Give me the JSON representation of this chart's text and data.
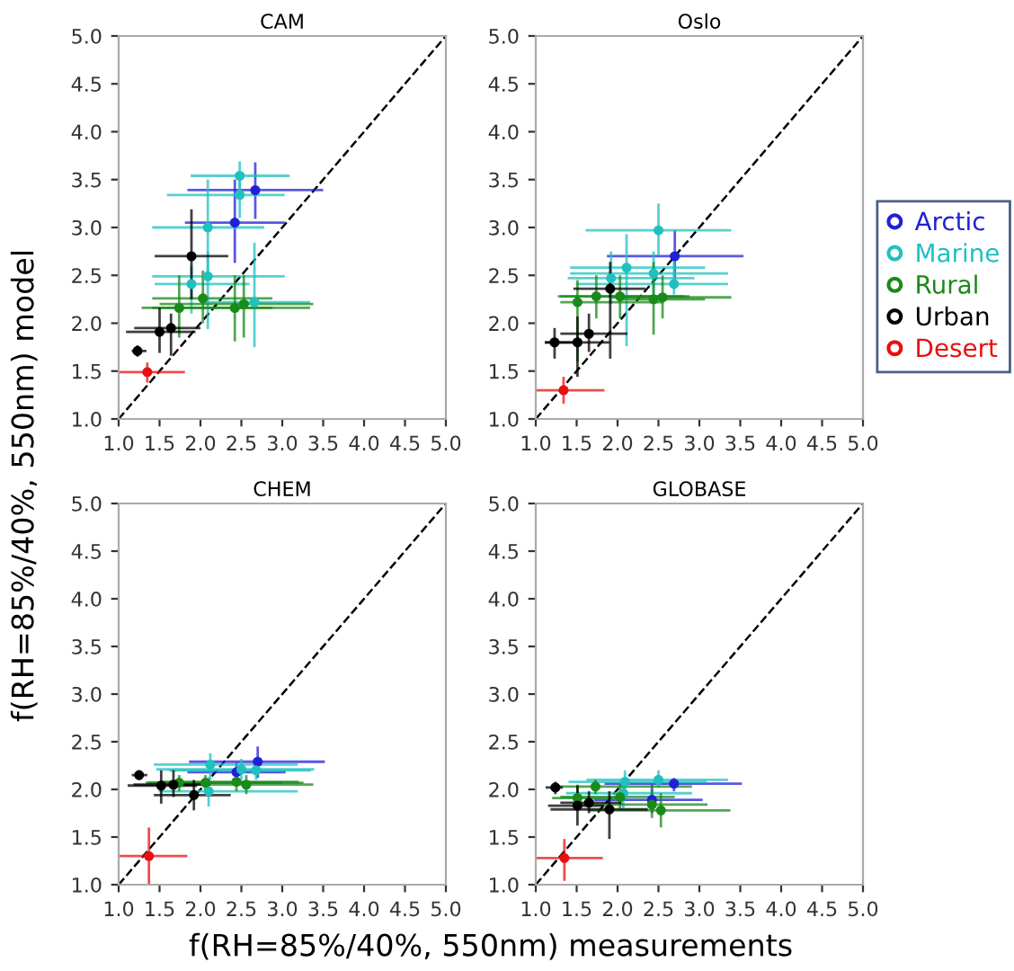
{
  "chart_data": [
    {
      "type": "scatter",
      "title": "CAM",
      "xlabel": "f(RH=85%/40%, 550nm) measurements",
      "ylabel": "f(RH=85%/40%, 550nm) model",
      "legend": "right",
      "marker": "circle",
      "xlim": [
        1,
        5
      ],
      "ylim": [
        1,
        5
      ],
      "xticks": [
        {
          "value": 1,
          "label": "1.0"
        },
        {
          "value": 1.5,
          "label": "1.5"
        },
        {
          "value": 2,
          "label": "2.0"
        },
        {
          "value": 2.5,
          "label": "2.5"
        },
        {
          "value": 3,
          "label": "3.0"
        },
        {
          "value": 3.5,
          "label": "3.5"
        },
        {
          "value": 4,
          "label": "4.0"
        },
        {
          "value": 4.5,
          "label": "4.5"
        },
        {
          "value": 5,
          "label": "5.0"
        }
      ],
      "yticks": [
        {
          "value": 1,
          "label": "1.0"
        },
        {
          "value": 1.5,
          "label": "1.5"
        },
        {
          "value": 2,
          "label": "2.0"
        },
        {
          "value": 2.5,
          "label": "2.5"
        },
        {
          "value": 3,
          "label": "3.0"
        },
        {
          "value": 3.5,
          "label": "3.5"
        },
        {
          "value": 4,
          "label": "4.0"
        },
        {
          "value": 4.5,
          "label": "4.5"
        },
        {
          "value": 5,
          "label": "5.0"
        }
      ],
      "series": [
        {
          "type": "line",
          "marker": "none",
          "color": "#000000",
          "line_style": "dashed",
          "x": [
            1,
            5
          ],
          "values": [
            1,
            5
          ]
        },
        {
          "name": "Arctic",
          "color": "#2020d8",
          "x": [
            2.67,
            2.42
          ],
          "values": [
            3.39,
            3.05
          ],
          "xerrors": [
            [
              1.84,
              3.5
            ],
            [
              1.81,
              3.03
            ]
          ],
          "errors": [
            [
              3.09,
              3.68
            ],
            [
              2.63,
              3.5
            ]
          ]
        },
        {
          "name": "Marine",
          "color": "#20c0c0",
          "x": [
            2.48,
            2.48,
            2.09,
            2.09,
            1.89,
            2.66
          ],
          "values": [
            3.54,
            3.34,
            3.0,
            2.49,
            2.41,
            2.22
          ],
          "xerrors": [
            [
              1.88,
              3.09
            ],
            [
              1.59,
              3.03
            ],
            [
              1.41,
              2.78
            ],
            [
              1.41,
              3.03
            ],
            [
              1.44,
              2.6
            ],
            [
              2.0,
              3.34
            ]
          ],
          "errors": [
            [
              3.38,
              3.69
            ],
            [
              3.1,
              3.5
            ],
            [
              2.5,
              3.5
            ],
            [
              1.94,
              2.75
            ],
            [
              2.1,
              2.6
            ],
            [
              1.75,
              2.84
            ]
          ]
        },
        {
          "name": "Rural",
          "color": "#1a8a1a",
          "x": [
            1.74,
            2.03,
            2.42,
            2.53
          ],
          "values": [
            2.16,
            2.26,
            2.16,
            2.2
          ],
          "xerrors": [
            [
              1.28,
              2.88
            ],
            [
              1.41,
              2.88
            ],
            [
              1.41,
              3.34
            ],
            [
              1.5,
              3.38
            ]
          ],
          "errors": [
            [
              1.85,
              2.5
            ],
            [
              2.0,
              2.55
            ],
            [
              1.81,
              2.5
            ],
            [
              1.85,
              2.5
            ]
          ]
        },
        {
          "name": "Urban",
          "color": "#000000",
          "x": [
            1.23,
            1.5,
            1.64,
            1.89
          ],
          "values": [
            1.71,
            1.91,
            1.95,
            2.7
          ],
          "xerrors": [
            [
              1.16,
              1.34
            ],
            [
              1.09,
              1.94
            ],
            [
              1.19,
              2.0
            ],
            [
              1.44,
              2.34
            ]
          ],
          "errors": [
            [
              1.65,
              1.77
            ],
            [
              1.69,
              2.16
            ],
            [
              1.66,
              2.1
            ],
            [
              2.25,
              3.19
            ]
          ]
        },
        {
          "name": "Desert",
          "color": "#e81010",
          "x": [
            1.35
          ],
          "values": [
            1.49
          ],
          "xerrors": [
            [
              1.0,
              1.81
            ]
          ],
          "errors": [
            [
              1.38,
              1.59
            ]
          ]
        }
      ]
    },
    {
      "type": "scatter",
      "title": "Oslo",
      "marker": "circle",
      "xlim": [
        1,
        5
      ],
      "ylim": [
        1,
        5
      ],
      "xticks": [
        {
          "value": 1,
          "label": "1.0"
        },
        {
          "value": 1.5,
          "label": "1.5"
        },
        {
          "value": 2,
          "label": "2.0"
        },
        {
          "value": 2.5,
          "label": "2.5"
        },
        {
          "value": 3,
          "label": "3.0"
        },
        {
          "value": 3.5,
          "label": "3.5"
        },
        {
          "value": 4,
          "label": "4.0"
        },
        {
          "value": 4.5,
          "label": "4.5"
        },
        {
          "value": 5,
          "label": "5.0"
        }
      ],
      "yticks": [
        {
          "value": 1,
          "label": "1.0"
        },
        {
          "value": 1.5,
          "label": "1.5"
        },
        {
          "value": 2,
          "label": "2.0"
        },
        {
          "value": 2.5,
          "label": "2.5"
        },
        {
          "value": 3,
          "label": "3.0"
        },
        {
          "value": 3.5,
          "label": "3.5"
        },
        {
          "value": 4,
          "label": "4.0"
        },
        {
          "value": 4.5,
          "label": "4.5"
        },
        {
          "value": 5,
          "label": "5.0"
        }
      ],
      "series": [
        {
          "type": "line",
          "marker": "none",
          "color": "#000000",
          "line_style": "dashed",
          "x": [
            1,
            5
          ],
          "values": [
            1,
            5
          ]
        },
        {
          "color": "#2020d8",
          "x": [
            2.7
          ],
          "values": [
            2.7
          ],
          "xerrors": [
            [
              1.87,
              3.54
            ]
          ],
          "errors": [
            [
              2.39,
              2.97
            ]
          ]
        },
        {
          "color": "#20c0c0",
          "x": [
            2.5,
            2.11,
            2.44,
            2.69,
            1.92
          ],
          "values": [
            2.97,
            2.58,
            2.52,
            2.41,
            2.47
          ],
          "xerrors": [
            [
              1.61,
              3.39
            ],
            [
              1.42,
              3.07
            ],
            [
              1.42,
              3.35
            ],
            [
              1.49,
              3.35
            ],
            [
              1.39,
              2.94
            ]
          ],
          "errors": [
            [
              2.71,
              3.25
            ],
            [
              1.76,
              2.93
            ],
            [
              2.3,
              2.75
            ],
            [
              2.3,
              2.7
            ],
            [
              2.2,
              2.75
            ]
          ]
        },
        {
          "color": "#1a8a1a",
          "x": [
            1.51,
            1.74,
            2.03,
            2.44,
            2.55
          ],
          "values": [
            2.22,
            2.28,
            2.28,
            2.25,
            2.27
          ],
          "xerrors": [
            [
              1.3,
              2.56
            ],
            [
              1.27,
              2.82
            ],
            [
              1.3,
              2.88
            ],
            [
              2.0,
              3.07
            ],
            [
              1.93,
              3.39
            ]
          ],
          "errors": [
            [
              1.6,
              2.45
            ],
            [
              2.05,
              2.5
            ],
            [
              2.05,
              2.5
            ],
            [
              1.88,
              2.64
            ],
            [
              2.05,
              2.5
            ]
          ]
        },
        {
          "color": "#000000",
          "x": [
            1.23,
            1.51,
            1.65,
            1.91
          ],
          "values": [
            1.8,
            1.8,
            1.89,
            2.36
          ],
          "xerrors": [
            [
              1.11,
              1.49
            ],
            [
              1.11,
              1.9
            ],
            [
              1.3,
              2.12
            ],
            [
              1.46,
              2.34
            ]
          ],
          "errors": [
            [
              1.63,
              1.95
            ],
            [
              1.44,
              2.07
            ],
            [
              1.7,
              2.1
            ],
            [
              1.63,
              2.64
            ]
          ]
        },
        {
          "color": "#e81010",
          "x": [
            1.34
          ],
          "values": [
            1.3
          ],
          "xerrors": [
            [
              1.0,
              1.84
            ]
          ],
          "errors": [
            [
              1.16,
              1.44
            ]
          ]
        }
      ]
    },
    {
      "type": "scatter",
      "title": "CHEM",
      "marker": "circle",
      "xlim": [
        1,
        5
      ],
      "ylim": [
        1,
        5
      ],
      "xticks": [
        {
          "value": 1,
          "label": "1.0"
        },
        {
          "value": 1.5,
          "label": "1.5"
        },
        {
          "value": 2,
          "label": "2.0"
        },
        {
          "value": 2.5,
          "label": "2.5"
        },
        {
          "value": 3,
          "label": "3.0"
        },
        {
          "value": 3.5,
          "label": "3.5"
        },
        {
          "value": 4,
          "label": "4.0"
        },
        {
          "value": 4.5,
          "label": "4.5"
        },
        {
          "value": 5,
          "label": "5.0"
        }
      ],
      "yticks": [
        {
          "value": 1,
          "label": "1.0"
        },
        {
          "value": 1.5,
          "label": "1.5"
        },
        {
          "value": 2,
          "label": "2.0"
        },
        {
          "value": 2.5,
          "label": "2.5"
        },
        {
          "value": 3,
          "label": "3.0"
        },
        {
          "value": 3.5,
          "label": "3.5"
        },
        {
          "value": 4,
          "label": "4.0"
        },
        {
          "value": 4.5,
          "label": "4.5"
        },
        {
          "value": 5,
          "label": "5.0"
        }
      ],
      "series": [
        {
          "type": "line",
          "marker": "none",
          "color": "#000000",
          "line_style": "dashed",
          "x": [
            1,
            5
          ],
          "values": [
            1,
            5
          ]
        },
        {
          "color": "#2020d8",
          "x": [
            2.7,
            2.44
          ],
          "values": [
            2.29,
            2.18
          ],
          "xerrors": [
            [
              1.86,
              3.52
            ],
            [
              1.84,
              3.04
            ]
          ],
          "errors": [
            [
              2.12,
              2.45
            ],
            [
              2.08,
              2.28
            ]
          ]
        },
        {
          "color": "#20c0c0",
          "x": [
            2.12,
            2.5,
            2.1,
            2.68
          ],
          "values": [
            2.26,
            2.21,
            1.98,
            2.2
          ],
          "xerrors": [
            [
              1.43,
              3.19
            ],
            [
              1.46,
              3.39
            ],
            [
              1.49,
              3.19
            ],
            [
              1.62,
              3.35
            ]
          ],
          "errors": [
            [
              2.1,
              2.38
            ],
            [
              2.1,
              2.32
            ],
            [
              1.82,
              2.13
            ],
            [
              2.1,
              2.3
            ]
          ]
        },
        {
          "color": "#1a8a1a",
          "x": [
            1.74,
            2.06,
            2.44,
            2.56
          ],
          "values": [
            2.07,
            2.07,
            2.08,
            2.05
          ],
          "xerrors": [
            [
              1.33,
              3.0
            ],
            [
              1.36,
              3.26
            ],
            [
              1.5,
              3.2
            ],
            [
              1.74,
              3.38
            ]
          ],
          "errors": [
            [
              1.98,
              2.15
            ],
            [
              1.98,
              2.15
            ],
            [
              1.98,
              2.2
            ],
            [
              1.95,
              2.15
            ]
          ]
        },
        {
          "color": "#000000",
          "x": [
            1.25,
            1.52,
            1.67,
            1.92
          ],
          "values": [
            2.15,
            2.04,
            2.05,
            1.94
          ],
          "xerrors": [
            [
              1.16,
              1.35
            ],
            [
              1.11,
              1.96
            ],
            [
              1.18,
              2.12
            ],
            [
              1.43,
              2.37
            ]
          ],
          "errors": [
            [
              2.1,
              2.2
            ],
            [
              1.85,
              2.2
            ],
            [
              1.92,
              2.2
            ],
            [
              1.78,
              2.1
            ]
          ]
        },
        {
          "color": "#e81010",
          "x": [
            1.37
          ],
          "values": [
            1.3
          ],
          "xerrors": [
            [
              1.0,
              1.84
            ]
          ],
          "errors": [
            [
              1.0,
              1.6
            ]
          ]
        }
      ]
    },
    {
      "type": "scatter",
      "title": "GLOBASE",
      "marker": "circle",
      "xlim": [
        1,
        5
      ],
      "ylim": [
        1,
        5
      ],
      "xticks": [
        {
          "value": 1,
          "label": "1.0"
        },
        {
          "value": 1.5,
          "label": "1.5"
        },
        {
          "value": 2,
          "label": "2.0"
        },
        {
          "value": 2.5,
          "label": "2.5"
        },
        {
          "value": 3,
          "label": "3.0"
        },
        {
          "value": 3.5,
          "label": "3.5"
        },
        {
          "value": 4,
          "label": "4.0"
        },
        {
          "value": 4.5,
          "label": "4.5"
        },
        {
          "value": 5,
          "label": "5.0"
        }
      ],
      "yticks": [
        {
          "value": 1,
          "label": "1.0"
        },
        {
          "value": 1.5,
          "label": "1.5"
        },
        {
          "value": 2,
          "label": "2.0"
        },
        {
          "value": 2.5,
          "label": "2.5"
        },
        {
          "value": 3,
          "label": "3.0"
        },
        {
          "value": 3.5,
          "label": "3.5"
        },
        {
          "value": 4,
          "label": "4.0"
        },
        {
          "value": 4.5,
          "label": "4.5"
        },
        {
          "value": 5,
          "label": "5.0"
        }
      ],
      "series": [
        {
          "type": "line",
          "marker": "none",
          "color": "#000000",
          "line_style": "dashed",
          "x": [
            1,
            5
          ],
          "values": [
            1,
            5
          ]
        },
        {
          "color": "#2020d8",
          "x": [
            2.69,
            2.42
          ],
          "values": [
            2.06,
            1.89
          ],
          "xerrors": [
            [
              1.84,
              3.52
            ],
            [
              1.71,
              3.04
            ]
          ],
          "errors": [
            [
              1.98,
              2.12
            ],
            [
              1.75,
              2.05
            ]
          ]
        },
        {
          "color": "#20c0c0",
          "x": [
            2.5,
            2.09,
            2.07
          ],
          "values": [
            2.1,
            2.08,
            1.96
          ],
          "xerrors": [
            [
              1.62,
              3.35
            ],
            [
              1.4,
              3.09
            ],
            [
              1.37,
              2.91
            ]
          ],
          "errors": [
            [
              2.02,
              2.2
            ],
            [
              1.95,
              2.2
            ],
            [
              1.8,
              2.1
            ]
          ]
        },
        {
          "color": "#1a8a1a",
          "x": [
            1.73,
            2.03,
            2.53,
            2.42,
            1.51
          ],
          "values": [
            2.03,
            1.92,
            1.78,
            1.84,
            1.91
          ],
          "xerrors": [
            [
              1.27,
              2.91
            ],
            [
              1.3,
              2.7
            ],
            [
              1.65,
              3.38
            ],
            [
              1.5,
              3.1
            ],
            [
              1.2,
              2.1
            ]
          ],
          "errors": [
            [
              1.95,
              2.1
            ],
            [
              1.8,
              2.05
            ],
            [
              1.6,
              1.96
            ],
            [
              1.7,
              2.0
            ],
            [
              1.78,
              2.05
            ]
          ]
        },
        {
          "color": "#000000",
          "x": [
            1.24,
            1.51,
            1.65,
            1.9
          ],
          "values": [
            2.02,
            1.83,
            1.86,
            1.79
          ],
          "xerrors": [
            [
              1.12,
              1.33
            ],
            [
              1.15,
              1.84
            ],
            [
              1.3,
              2.05
            ],
            [
              1.18,
              2.37
            ]
          ],
          "errors": [
            [
              1.95,
              2.08
            ],
            [
              1.62,
              2.04
            ],
            [
              1.75,
              1.98
            ],
            [
              1.48,
              1.98
            ]
          ]
        },
        {
          "color": "#e81010",
          "x": [
            1.35
          ],
          "values": [
            1.28
          ],
          "xerrors": [
            [
              1.0,
              1.82
            ]
          ],
          "errors": [
            [
              1.04,
              1.48
            ]
          ]
        }
      ]
    }
  ]
}
